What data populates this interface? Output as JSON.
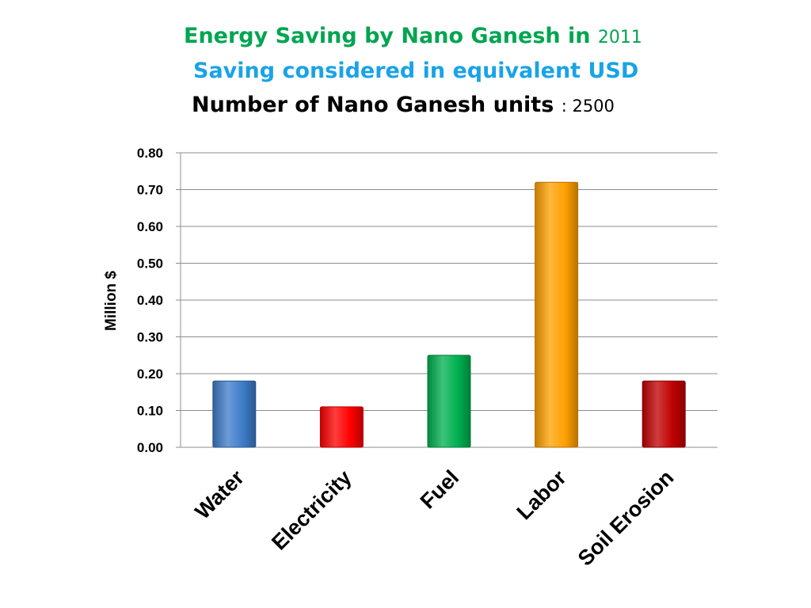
{
  "titles": {
    "line1_main": "Energy Saving by Nano Ganesh in ",
    "line1_year": "2011",
    "line2": "Saving considered in equivalent USD",
    "line3_main": "Number of Nano Ganesh units ",
    "line3_sep": ": ",
    "line3_value": "2500"
  },
  "colors": {
    "title1": "#00a550",
    "title2": "#1aa3e6",
    "gridline": "#8c8c8c"
  },
  "chart_data": {
    "type": "bar",
    "categories": [
      "Water",
      "Electricity",
      "Fuel",
      "Labor",
      "Soil Erosion"
    ],
    "values": [
      0.18,
      0.11,
      0.25,
      0.72,
      0.18
    ],
    "bar_colors": [
      "#3d7cc9",
      "#ff0000",
      "#00b050",
      "#ffa000",
      "#c00000"
    ],
    "ylabel": "Million $",
    "xlabel": "",
    "ylim": [
      0,
      0.8
    ],
    "yticks": [
      "0.00",
      "0.10",
      "0.20",
      "0.30",
      "0.40",
      "0.50",
      "0.60",
      "0.70",
      "0.80"
    ],
    "grid": true,
    "legend": "none"
  }
}
